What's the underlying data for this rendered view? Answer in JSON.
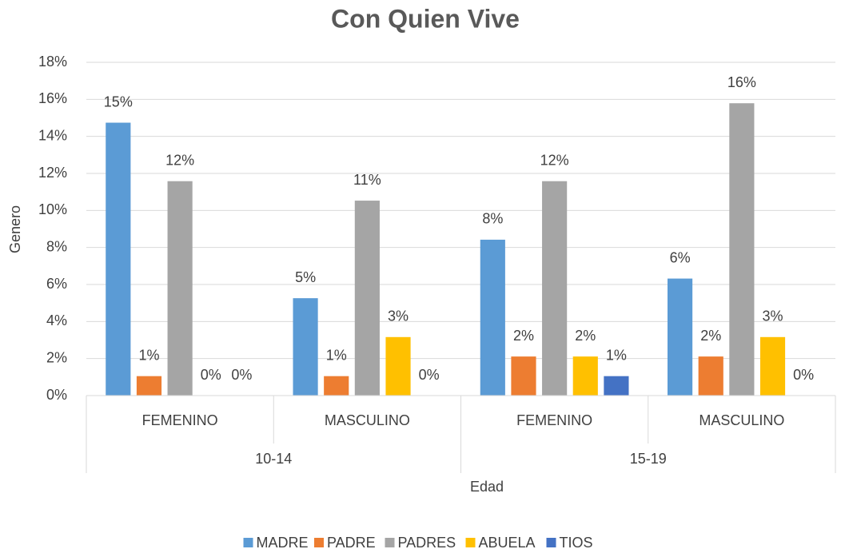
{
  "chart_data": {
    "type": "bar",
    "title": "Con Quien Vive",
    "x_label": "Edad",
    "y_label": "Genero",
    "categories": [
      "FEMENINO",
      "MASCULINO",
      "FEMENINO",
      "MASCULINO"
    ],
    "groups": [
      "10-14",
      "15-19"
    ],
    "series": [
      {
        "name": "MADRE",
        "color": "#5b9bd5",
        "values": [
          14.74,
          5.26,
          8.42,
          6.32
        ],
        "value_labels": [
          "15%",
          "5%",
          "8%",
          "6%"
        ]
      },
      {
        "name": "PADRE",
        "color": "#ed7d31",
        "values": [
          1.05,
          1.05,
          2.11,
          2.11
        ],
        "value_labels": [
          "1%",
          "1%",
          "2%",
          "2%"
        ]
      },
      {
        "name": "PADRES",
        "color": "#a5a5a5",
        "values": [
          11.58,
          10.53,
          11.58,
          15.79
        ],
        "value_labels": [
          "12%",
          "11%",
          "12%",
          "16%"
        ]
      },
      {
        "name": "ABUELA",
        "color": "#ffc000",
        "values": [
          0,
          3.16,
          2.11,
          3.16
        ],
        "value_labels": [
          "0%",
          "3%",
          "2%",
          "3%"
        ]
      },
      {
        "name": "TIOS",
        "color": "#4472c4",
        "values": [
          0,
          0,
          1.05,
          0
        ],
        "value_labels": [
          "0%",
          "0%",
          "1%",
          "0%"
        ]
      }
    ],
    "ylim": [
      0,
      18
    ],
    "yticks": [
      {
        "value": 0,
        "label": "0%"
      },
      {
        "value": 2,
        "label": "2%"
      },
      {
        "value": 4,
        "label": "4%"
      },
      {
        "value": 6,
        "label": "6%"
      },
      {
        "value": 8,
        "label": "8%"
      },
      {
        "value": 10,
        "label": "10%"
      },
      {
        "value": 12,
        "label": "12%"
      },
      {
        "value": 14,
        "label": "14%"
      },
      {
        "value": 16,
        "label": "16%"
      },
      {
        "value": 18,
        "label": "18%"
      }
    ],
    "grid": true,
    "legend": "bottom"
  }
}
